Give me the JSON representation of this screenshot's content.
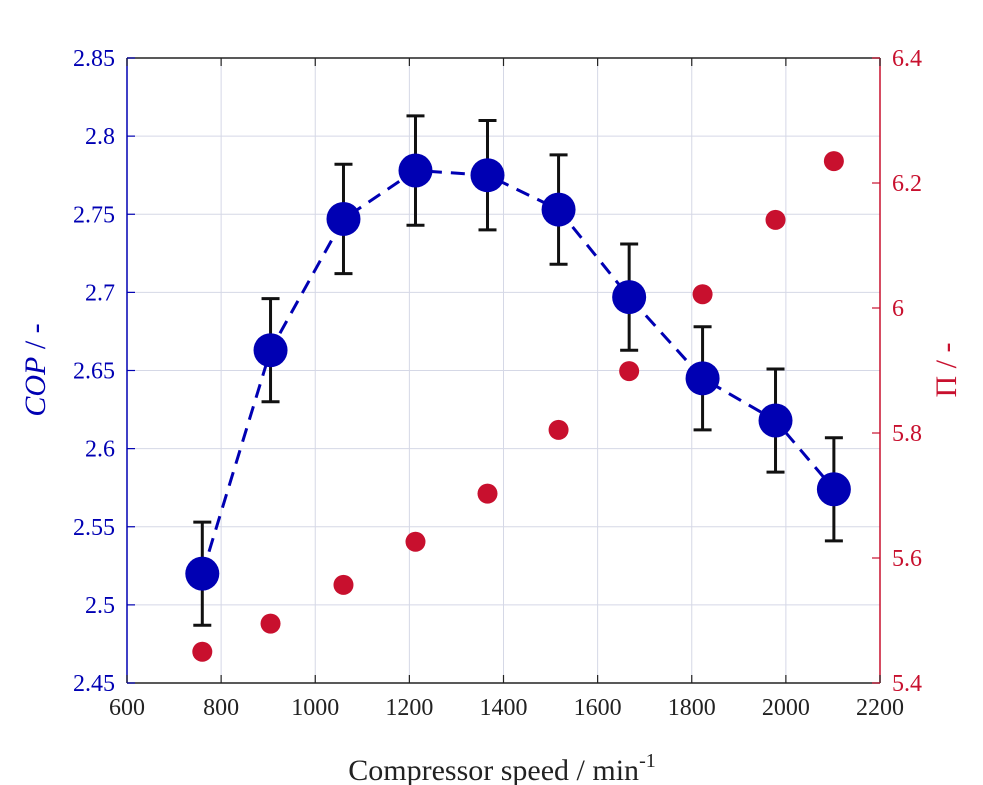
{
  "chart_data": {
    "type": "scatter",
    "xlabel": {
      "text": "Compressor speed / min",
      "superscript": "-1"
    },
    "ylabel_left": {
      "italic": "COP",
      "text": " / -"
    },
    "ylabel_right": {
      "text": "Π / -"
    },
    "xlim": [
      600,
      2200
    ],
    "ylim_left": [
      2.45,
      2.85
    ],
    "ylim_right": [
      5.4,
      6.4
    ],
    "x_ticks": [
      "600",
      "800",
      "1000",
      "1200",
      "1400",
      "1600",
      "1800",
      "2000",
      "2200"
    ],
    "y_left_ticks": [
      "2.45",
      "2.5",
      "2.55",
      "2.6",
      "2.65",
      "2.7",
      "2.75",
      "2.8",
      "2.85"
    ],
    "y_right_ticks": [
      "5.4",
      "5.6",
      "5.8",
      "6",
      "6.2",
      "6.4"
    ],
    "grid": true,
    "legend": "none",
    "colors": {
      "cop": "#0000b3",
      "pi": "#c8102e",
      "errorbar": "#111111",
      "grid": "#d5d8e6",
      "axis_bottom": "#222222"
    },
    "series": [
      {
        "axis": "left",
        "marker": "large-circle",
        "line": "dashed",
        "x": [
          760,
          905,
          1060,
          1213,
          1366,
          1517,
          1667,
          1823,
          1978,
          2102
        ],
        "values": [
          2.52,
          2.663,
          2.747,
          2.778,
          2.775,
          2.753,
          2.697,
          2.645,
          2.618,
          2.574
        ],
        "error": [
          0.033,
          0.033,
          0.035,
          0.035,
          0.035,
          0.035,
          0.034,
          0.033,
          0.033,
          0.033
        ]
      },
      {
        "axis": "right",
        "marker": "small-circle",
        "line": "none",
        "x": [
          760,
          905,
          1060,
          1213,
          1366,
          1517,
          1667,
          1823,
          1978,
          2102
        ],
        "values": [
          5.45,
          5.495,
          5.557,
          5.626,
          5.703,
          5.805,
          5.899,
          6.022,
          6.141,
          6.235
        ]
      }
    ]
  }
}
